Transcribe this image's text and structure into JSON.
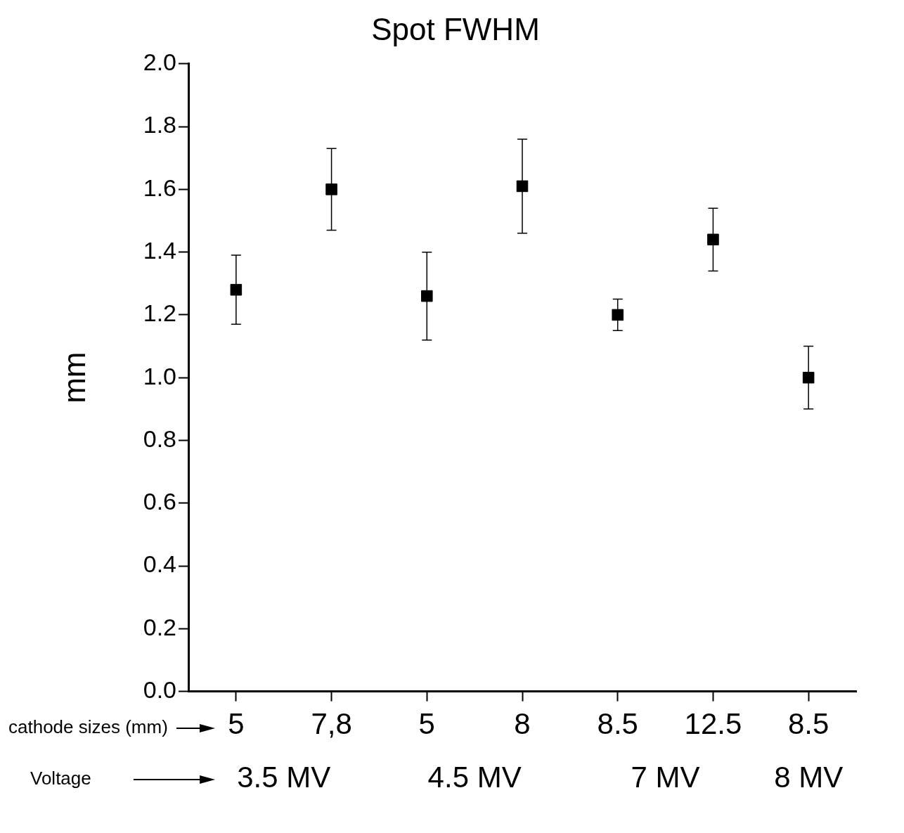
{
  "chart_data": {
    "type": "scatter",
    "title": "Spot FWHM",
    "ylabel": "mm",
    "categories": [
      "5",
      "7,8",
      "5",
      "8",
      "8.5",
      "12.5",
      "8.5"
    ],
    "values": [
      1.28,
      1.6,
      1.26,
      1.61,
      1.2,
      1.44,
      1.0
    ],
    "errors": [
      [
        1.17,
        1.39
      ],
      [
        1.47,
        1.73
      ],
      [
        1.12,
        1.4
      ],
      [
        1.46,
        1.76
      ],
      [
        1.15,
        1.25
      ],
      [
        1.34,
        1.54
      ],
      [
        0.9,
        1.1
      ]
    ],
    "color": "#000000",
    "marker": "square",
    "grid": false,
    "legend": false,
    "ylim": [
      0,
      2.0
    ],
    "yticks": [
      {
        "value": 0,
        "label": "0.0"
      },
      0.2,
      0.4,
      0.6,
      0.8,
      {
        "value": 1,
        "label": "1.0"
      },
      1.2,
      1.4,
      1.6,
      1.8,
      {
        "value": 2,
        "label": "2.0"
      }
    ],
    "annotations": [
      "cathode sizes (mm)",
      "Voltage",
      "3.5 MV",
      "4.5 MV",
      "7 MV",
      "8 MV"
    ]
  }
}
